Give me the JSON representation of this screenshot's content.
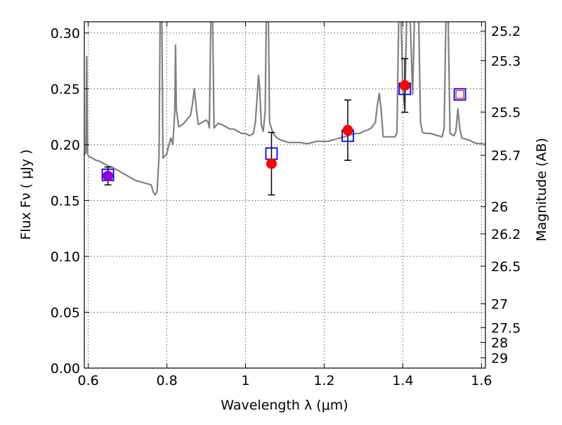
{
  "chart_data": {
    "type": "line",
    "title": "",
    "xlabel": "Wavelength  λ (μm)",
    "ylabel": "Flux  Fν  ( μJy )",
    "y2label": "Magnitude (AB)",
    "xlim": [
      0.59,
      1.61
    ],
    "ylim": [
      0.0,
      0.31
    ],
    "grid": true,
    "x_ticks": [
      0.6,
      0.8,
      1.0,
      1.2,
      1.4,
      1.6
    ],
    "x_tick_labels": [
      "0.6",
      "0.8",
      "1",
      "1.2",
      "1.4",
      "1.6"
    ],
    "y_ticks": [
      0.0,
      0.05,
      0.1,
      0.15,
      0.2,
      0.25,
      0.3
    ],
    "y_tick_labels": [
      "0.00",
      "0.05",
      "0.10",
      "0.15",
      "0.20",
      "0.25",
      "0.30"
    ],
    "y2_ticks": [
      {
        "flux": 0.3017,
        "label": "25.2"
      },
      {
        "flux": 0.2752,
        "label": "25.3"
      },
      {
        "flux": 0.2291,
        "label": "25.5"
      },
      {
        "flux": 0.1905,
        "label": "25.7"
      },
      {
        "flux": 0.1445,
        "label": "26"
      },
      {
        "flux": 0.1202,
        "label": "26.2"
      },
      {
        "flux": 0.0912,
        "label": "26.5"
      },
      {
        "flux": 0.0575,
        "label": "27"
      },
      {
        "flux": 0.0363,
        "label": "27.5"
      },
      {
        "flux": 0.0229,
        "label": "28"
      },
      {
        "flux": 0.0091,
        "label": "29"
      }
    ],
    "series": [
      {
        "kind": "spectrum",
        "color": "#808080",
        "points": [
          [
            0.59,
            0.191
          ],
          [
            0.594,
            0.193
          ],
          [
            0.596,
            0.279
          ],
          [
            0.598,
            0.193
          ],
          [
            0.6,
            0.19
          ],
          [
            0.61,
            0.188
          ],
          [
            0.62,
            0.186
          ],
          [
            0.63,
            0.185
          ],
          [
            0.64,
            0.183
          ],
          [
            0.65,
            0.181
          ],
          [
            0.66,
            0.18
          ],
          [
            0.67,
            0.178
          ],
          [
            0.68,
            0.176
          ],
          [
            0.69,
            0.174
          ],
          [
            0.7,
            0.172
          ],
          [
            0.71,
            0.17
          ],
          [
            0.72,
            0.168
          ],
          [
            0.73,
            0.167
          ],
          [
            0.74,
            0.166
          ],
          [
            0.75,
            0.165
          ],
          [
            0.76,
            0.164
          ],
          [
            0.765,
            0.158
          ],
          [
            0.77,
            0.155
          ],
          [
            0.775,
            0.158
          ],
          [
            0.78,
            0.19
          ],
          [
            0.783,
            0.32
          ],
          [
            0.787,
            0.32
          ],
          [
            0.79,
            0.188
          ],
          [
            0.8,
            0.192
          ],
          [
            0.805,
            0.2
          ],
          [
            0.81,
            0.206
          ],
          [
            0.815,
            0.2
          ],
          [
            0.82,
            0.23
          ],
          [
            0.822,
            0.289
          ],
          [
            0.824,
            0.232
          ],
          [
            0.83,
            0.216
          ],
          [
            0.84,
            0.218
          ],
          [
            0.85,
            0.222
          ],
          [
            0.86,
            0.226
          ],
          [
            0.865,
            0.236
          ],
          [
            0.87,
            0.25
          ],
          [
            0.875,
            0.232
          ],
          [
            0.88,
            0.218
          ],
          [
            0.89,
            0.22
          ],
          [
            0.9,
            0.222
          ],
          [
            0.905,
            0.22
          ],
          [
            0.908,
            0.215
          ],
          [
            0.912,
            0.32
          ],
          [
            0.916,
            0.32
          ],
          [
            0.92,
            0.215
          ],
          [
            0.93,
            0.219
          ],
          [
            0.94,
            0.218
          ],
          [
            0.95,
            0.216
          ],
          [
            0.96,
            0.214
          ],
          [
            0.97,
            0.214
          ],
          [
            0.98,
            0.212
          ],
          [
            0.99,
            0.21
          ],
          [
            1.0,
            0.21
          ],
          [
            1.01,
            0.208
          ],
          [
            1.02,
            0.21
          ],
          [
            1.025,
            0.22
          ],
          [
            1.03,
            0.245
          ],
          [
            1.033,
            0.262
          ],
          [
            1.036,
            0.25
          ],
          [
            1.04,
            0.218
          ],
          [
            1.045,
            0.212
          ],
          [
            1.05,
            0.23
          ],
          [
            1.053,
            0.32
          ],
          [
            1.058,
            0.32
          ],
          [
            1.061,
            0.22
          ],
          [
            1.07,
            0.21
          ],
          [
            1.08,
            0.206
          ],
          [
            1.09,
            0.204
          ],
          [
            1.1,
            0.203
          ],
          [
            1.11,
            0.202
          ],
          [
            1.12,
            0.202
          ],
          [
            1.13,
            0.202
          ],
          [
            1.14,
            0.202
          ],
          [
            1.15,
            0.201
          ],
          [
            1.16,
            0.201
          ],
          [
            1.17,
            0.202
          ],
          [
            1.18,
            0.203
          ],
          [
            1.19,
            0.203
          ],
          [
            1.2,
            0.203
          ],
          [
            1.21,
            0.203
          ],
          [
            1.22,
            0.204
          ],
          [
            1.23,
            0.205
          ],
          [
            1.24,
            0.206
          ],
          [
            1.25,
            0.207
          ],
          [
            1.26,
            0.208
          ],
          [
            1.27,
            0.209
          ],
          [
            1.28,
            0.21
          ],
          [
            1.29,
            0.21
          ],
          [
            1.3,
            0.212
          ],
          [
            1.31,
            0.213
          ],
          [
            1.32,
            0.215
          ],
          [
            1.33,
            0.22
          ],
          [
            1.335,
            0.235
          ],
          [
            1.34,
            0.246
          ],
          [
            1.345,
            0.23
          ],
          [
            1.35,
            0.207
          ],
          [
            1.36,
            0.207
          ],
          [
            1.37,
            0.207
          ],
          [
            1.38,
            0.207
          ],
          [
            1.385,
            0.21
          ],
          [
            1.39,
            0.32
          ],
          [
            1.395,
            0.32
          ],
          [
            1.4,
            0.25
          ],
          [
            1.405,
            0.232
          ],
          [
            1.41,
            0.32
          ],
          [
            1.418,
            0.32
          ],
          [
            1.425,
            0.245
          ],
          [
            1.43,
            0.32
          ],
          [
            1.44,
            0.32
          ],
          [
            1.445,
            0.22
          ],
          [
            1.45,
            0.211
          ],
          [
            1.46,
            0.21
          ],
          [
            1.47,
            0.21
          ],
          [
            1.48,
            0.209
          ],
          [
            1.49,
            0.208
          ],
          [
            1.5,
            0.207
          ],
          [
            1.505,
            0.215
          ],
          [
            1.51,
            0.32
          ],
          [
            1.515,
            0.32
          ],
          [
            1.52,
            0.21
          ],
          [
            1.53,
            0.208
          ],
          [
            1.535,
            0.212
          ],
          [
            1.54,
            0.232
          ],
          [
            1.545,
            0.214
          ],
          [
            1.55,
            0.206
          ],
          [
            1.56,
            0.205
          ],
          [
            1.57,
            0.204
          ],
          [
            1.58,
            0.202
          ],
          [
            1.59,
            0.201
          ],
          [
            1.6,
            0.201
          ],
          [
            1.61,
            0.2
          ]
        ]
      },
      {
        "kind": "observed",
        "marker": "circle",
        "color": "#ff0000",
        "points": [
          {
            "x": 0.65,
            "y": 0.172,
            "err": 0.008,
            "color": "#9900cc"
          },
          {
            "x": 1.066,
            "y": 0.183,
            "err": 0.028,
            "color": "#ff0000"
          },
          {
            "x": 1.26,
            "y": 0.213,
            "err": 0.027,
            "color": "#ff0000"
          },
          {
            "x": 1.405,
            "y": 0.253,
            "err": 0.024,
            "color": "#ff0000"
          }
        ]
      },
      {
        "kind": "model",
        "marker": "square",
        "color": "#0000ff",
        "points": [
          {
            "x": 0.65,
            "y": 0.173,
            "color": "#0000ff"
          },
          {
            "x": 1.066,
            "y": 0.192,
            "color": "#0000ff"
          },
          {
            "x": 1.26,
            "y": 0.208,
            "color": "#0000ff"
          },
          {
            "x": 1.405,
            "y": 0.25,
            "color": "#0000ff"
          },
          {
            "x": 1.545,
            "y": 0.245,
            "color": "#0000ff",
            "inner": "#ff0000"
          }
        ]
      }
    ]
  }
}
